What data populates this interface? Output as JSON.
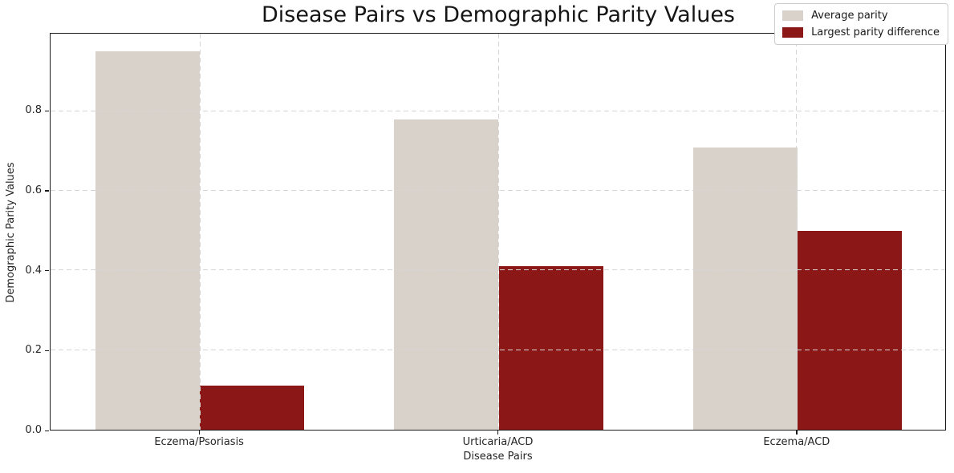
{
  "chart_data": {
    "type": "bar",
    "title": "Disease Pairs vs Demographic Parity Values",
    "xlabel": "Disease Pairs",
    "ylabel": "Demographic Parity Values",
    "categories": [
      "Eczema/Psoriasis",
      "Urticaria/ACD",
      "Eczema/ACD"
    ],
    "series": [
      {
        "name": "Average parity",
        "color": "#d9d2cb",
        "values": [
          0.95,
          0.78,
          0.71
        ]
      },
      {
        "name": "Largest parity difference",
        "color": "#8b1717",
        "values": [
          0.11,
          0.41,
          0.5
        ]
      }
    ],
    "ylim": [
      0,
      0.995
    ],
    "yticks": [
      0.0,
      0.2,
      0.4,
      0.6,
      0.8
    ],
    "ytick_decimals": 1,
    "grid": "dashed-both-axes-drawn-above-bars",
    "legend_position": "upper right",
    "bar_slot_fraction": 0.35
  }
}
